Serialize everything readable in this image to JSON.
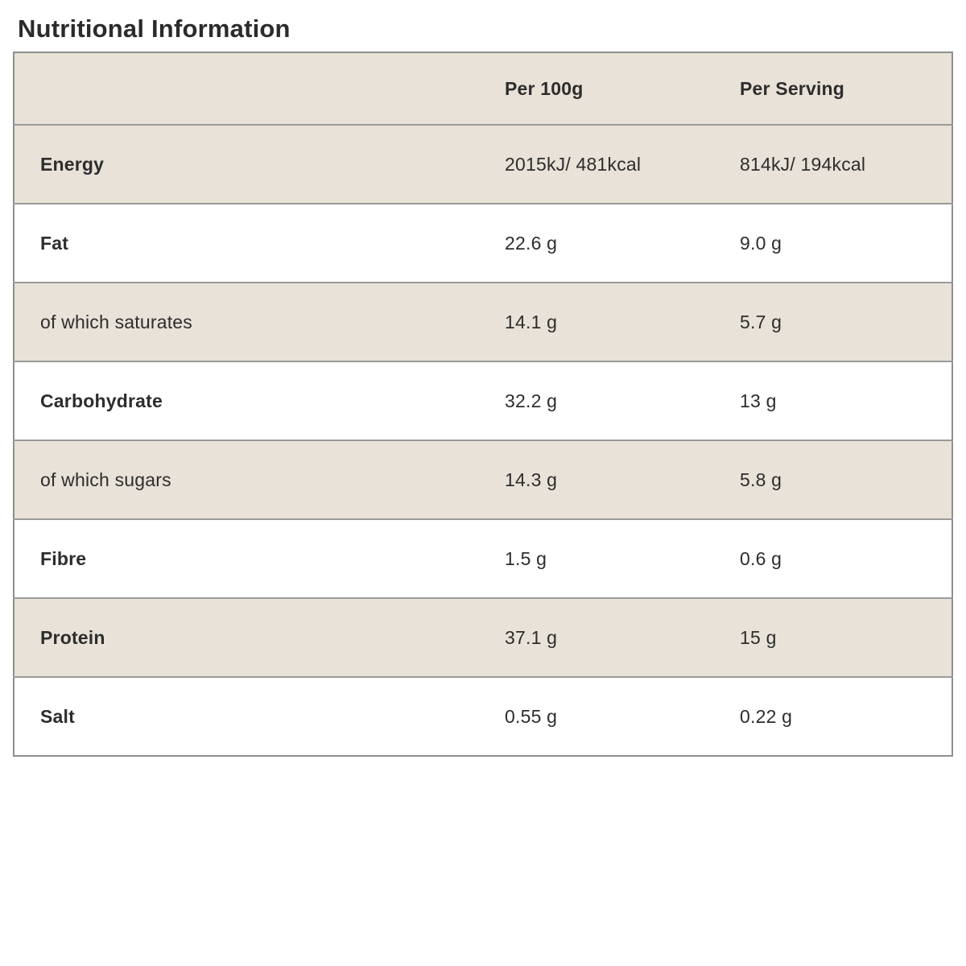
{
  "page": {
    "title": "Nutritional Information"
  },
  "colors": {
    "row_shade": "#e8e2d8",
    "row_plain": "#ffffff",
    "border": "#8e8e8e",
    "text": "#2d2d2d"
  },
  "chart_data": {
    "type": "table",
    "title": "Nutritional Information",
    "columns": [
      "",
      "Per 100g",
      "Per Serving"
    ],
    "rows": [
      {
        "label": "Energy",
        "per_100g": "2015kJ/ 481kcal",
        "per_serving": "814kJ/ 194kcal"
      },
      {
        "label": "Fat",
        "per_100g": "22.6 g",
        "per_serving": "9.0 g"
      },
      {
        "label": "of which saturates",
        "per_100g": "14.1 g",
        "per_serving": "5.7 g"
      },
      {
        "label": "Carbohydrate",
        "per_100g": "32.2 g",
        "per_serving": "13 g"
      },
      {
        "label": "of which sugars",
        "per_100g": "14.3 g",
        "per_serving": "5.8 g"
      },
      {
        "label": "Fibre",
        "per_100g": "1.5 g",
        "per_serving": "0.6 g"
      },
      {
        "label": "Protein",
        "per_100g": "37.1 g",
        "per_serving": "15 g"
      },
      {
        "label": "Salt",
        "per_100g": "0.55 g",
        "per_serving": "0.22 g"
      }
    ]
  },
  "table": {
    "header": {
      "col_label": "",
      "col_per_100g": "Per 100g",
      "col_per_serving": "Per Serving"
    },
    "rows": [
      {
        "label": "Energy",
        "per_100g": "2015kJ/ 481kcal",
        "per_serving": "814kJ/ 194kcal"
      },
      {
        "label": "Fat",
        "per_100g": "22.6 g",
        "per_serving": "9.0 g"
      },
      {
        "label": "of which saturates",
        "per_100g": "14.1 g",
        "per_serving": "5.7 g"
      },
      {
        "label": "Carbohydrate",
        "per_100g": "32.2 g",
        "per_serving": "13 g"
      },
      {
        "label": "of which sugars",
        "per_100g": "14.3 g",
        "per_serving": "5.8 g"
      },
      {
        "label": "Fibre",
        "per_100g": "1.5 g",
        "per_serving": "0.6 g"
      },
      {
        "label": "Protein",
        "per_100g": "37.1 g",
        "per_serving": "15 g"
      },
      {
        "label": "Salt",
        "per_100g": "0.55 g",
        "per_serving": "0.22 g"
      }
    ]
  }
}
